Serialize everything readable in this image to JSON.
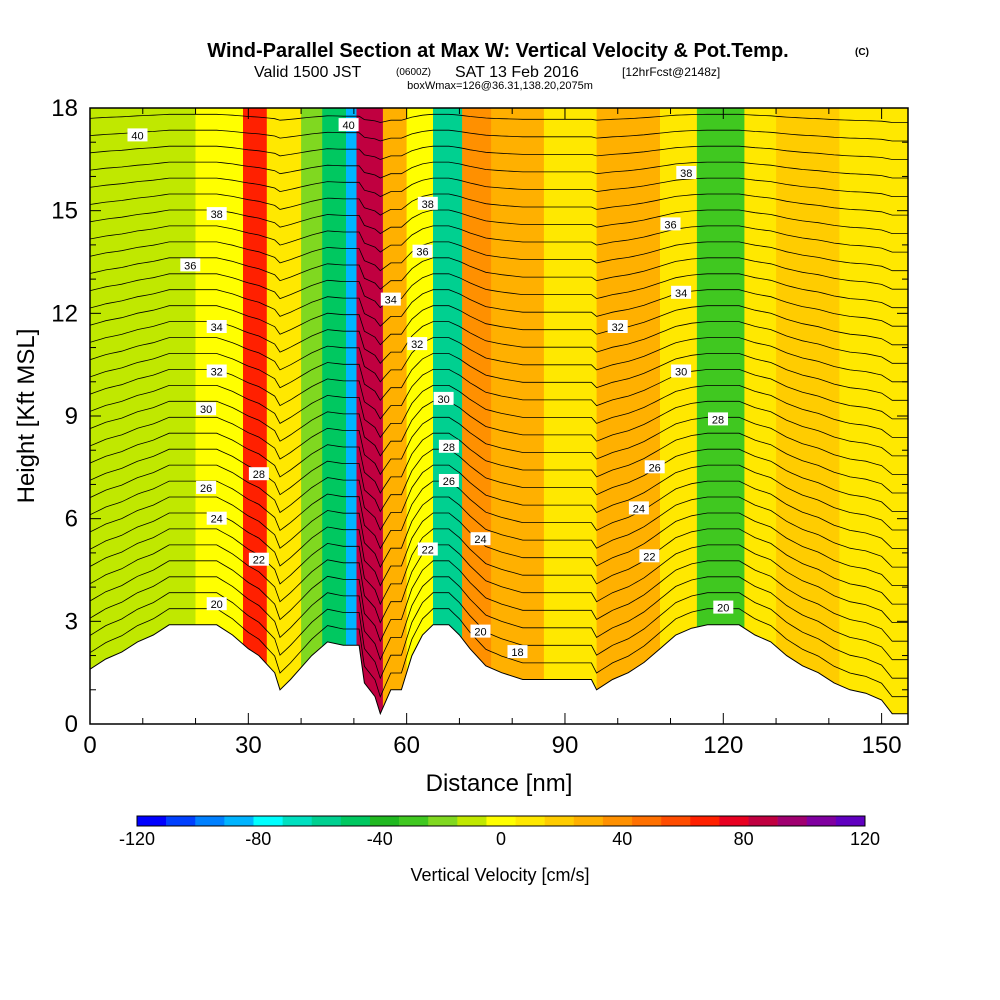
{
  "title": {
    "main": "Wind-Parallel Section at Max W: Vertical Velocity & Pot.Temp.",
    "copyright": "(C)",
    "valid_prefix": "Valid 1500 JST",
    "valid_z": "(0600Z)",
    "valid_date": "SAT 13 Feb 2016",
    "valid_fcst": "[12hrFcst@2148z]",
    "boxwmax": "boxWmax=126@36.31,138.20,2075m"
  },
  "chart_data": {
    "type": "heatmap",
    "xlabel": "Distance [nm]",
    "ylabel": "Height [Kft MSL]",
    "xlim": [
      0,
      155
    ],
    "ylim": [
      0,
      18
    ],
    "xticks": [
      "0",
      "30",
      "60",
      "90",
      "120",
      "150"
    ],
    "yticks": [
      "0",
      "3",
      "6",
      "9",
      "12",
      "15",
      "18"
    ],
    "shading_bands": [
      {
        "x0": 0,
        "x1": 20,
        "w": -5
      },
      {
        "x0": 20,
        "x1": 29,
        "w": 0
      },
      {
        "x0": 29,
        "x1": 33.5,
        "w": 70
      },
      {
        "x0": 33.5,
        "x1": 40,
        "w": 10
      },
      {
        "x0": 40,
        "x1": 44,
        "w": -20
      },
      {
        "x0": 44,
        "x1": 48.5,
        "w": -45
      },
      {
        "x0": 48.5,
        "x1": 50.5,
        "w": -90
      },
      {
        "x0": 50.5,
        "x1": 55.5,
        "w": 90
      },
      {
        "x0": 55.5,
        "x1": 60,
        "w": 25
      },
      {
        "x0": 60,
        "x1": 65,
        "w": 0
      },
      {
        "x0": 65,
        "x1": 70.5,
        "w": -55
      },
      {
        "x0": 70.5,
        "x1": 76,
        "w": 40
      },
      {
        "x0": 76,
        "x1": 86,
        "w": 25
      },
      {
        "x0": 86,
        "x1": 96,
        "w": 10
      },
      {
        "x0": 96,
        "x1": 108,
        "w": 25
      },
      {
        "x0": 108,
        "x1": 115,
        "w": 10
      },
      {
        "x0": 115,
        "x1": 124,
        "w": -25
      },
      {
        "x0": 124,
        "x1": 130,
        "w": 5
      },
      {
        "x0": 130,
        "x1": 142,
        "w": 15
      },
      {
        "x0": 142,
        "x1": 155,
        "w": 5
      }
    ],
    "terrain_kft": [
      {
        "x": 0,
        "h": 1.6
      },
      {
        "x": 3,
        "h": 1.9
      },
      {
        "x": 6,
        "h": 2.1
      },
      {
        "x": 9,
        "h": 2.4
      },
      {
        "x": 12,
        "h": 2.6
      },
      {
        "x": 15,
        "h": 2.9
      },
      {
        "x": 24,
        "h": 2.9
      },
      {
        "x": 27,
        "h": 2.6
      },
      {
        "x": 30,
        "h": 2.2
      },
      {
        "x": 32,
        "h": 2.0
      },
      {
        "x": 35,
        "h": 1.5
      },
      {
        "x": 36,
        "h": 1.0
      },
      {
        "x": 38,
        "h": 1.3
      },
      {
        "x": 42,
        "h": 2.0
      },
      {
        "x": 45,
        "h": 2.4
      },
      {
        "x": 48,
        "h": 2.3
      },
      {
        "x": 51,
        "h": 2.3
      },
      {
        "x": 52,
        "h": 1.2
      },
      {
        "x": 54,
        "h": 0.8
      },
      {
        "x": 55,
        "h": 0.3
      },
      {
        "x": 57,
        "h": 1.0
      },
      {
        "x": 59,
        "h": 1.0
      },
      {
        "x": 61,
        "h": 2.0
      },
      {
        "x": 63,
        "h": 2.6
      },
      {
        "x": 65,
        "h": 2.9
      },
      {
        "x": 68,
        "h": 2.9
      },
      {
        "x": 70,
        "h": 2.6
      },
      {
        "x": 72,
        "h": 2.2
      },
      {
        "x": 75,
        "h": 1.7
      },
      {
        "x": 78,
        "h": 1.5
      },
      {
        "x": 82,
        "h": 1.3
      },
      {
        "x": 95,
        "h": 1.3
      },
      {
        "x": 96,
        "h": 1.0
      },
      {
        "x": 99,
        "h": 1.3
      },
      {
        "x": 102,
        "h": 1.5
      },
      {
        "x": 105,
        "h": 1.8
      },
      {
        "x": 108,
        "h": 2.2
      },
      {
        "x": 111,
        "h": 2.6
      },
      {
        "x": 114,
        "h": 2.8
      },
      {
        "x": 117,
        "h": 2.9
      },
      {
        "x": 123,
        "h": 2.9
      },
      {
        "x": 126,
        "h": 2.6
      },
      {
        "x": 129,
        "h": 2.4
      },
      {
        "x": 132,
        "h": 2.0
      },
      {
        "x": 135,
        "h": 1.7
      },
      {
        "x": 138,
        "h": 1.5
      },
      {
        "x": 141,
        "h": 1.2
      },
      {
        "x": 144,
        "h": 1.0
      },
      {
        "x": 147,
        "h": 0.9
      },
      {
        "x": 150,
        "h": 0.7
      },
      {
        "x": 152,
        "h": 0.3
      },
      {
        "x": 155,
        "h": 0.3
      }
    ],
    "isentrope_spacing_kft": 0.55,
    "isentrope_labels": [
      {
        "text": "40",
        "x": 9,
        "y": 17.2
      },
      {
        "text": "40",
        "x": 49,
        "y": 17.5
      },
      {
        "text": "38",
        "x": 24,
        "y": 14.9
      },
      {
        "text": "38",
        "x": 64,
        "y": 15.2
      },
      {
        "text": "38",
        "x": 113,
        "y": 16.1
      },
      {
        "text": "36",
        "x": 19,
        "y": 13.4
      },
      {
        "text": "36",
        "x": 63,
        "y": 13.8
      },
      {
        "text": "36",
        "x": 110,
        "y": 14.6
      },
      {
        "text": "34",
        "x": 24,
        "y": 11.6
      },
      {
        "text": "34",
        "x": 57,
        "y": 12.4
      },
      {
        "text": "34",
        "x": 112,
        "y": 12.6
      },
      {
        "text": "32",
        "x": 24,
        "y": 10.3
      },
      {
        "text": "32",
        "x": 62,
        "y": 11.1
      },
      {
        "text": "32",
        "x": 100,
        "y": 11.6
      },
      {
        "text": "30",
        "x": 22,
        "y": 9.2
      },
      {
        "text": "30",
        "x": 67,
        "y": 9.5
      },
      {
        "text": "30",
        "x": 112,
        "y": 10.3
      },
      {
        "text": "28",
        "x": 32,
        "y": 7.3
      },
      {
        "text": "28",
        "x": 68,
        "y": 8.1
      },
      {
        "text": "28",
        "x": 119,
        "y": 8.9
      },
      {
        "text": "26",
        "x": 22,
        "y": 6.9
      },
      {
        "text": "26",
        "x": 68,
        "y": 7.1
      },
      {
        "text": "26",
        "x": 107,
        "y": 7.5
      },
      {
        "text": "24",
        "x": 24,
        "y": 6.0
      },
      {
        "text": "24",
        "x": 74,
        "y": 5.4
      },
      {
        "text": "24",
        "x": 104,
        "y": 6.3
      },
      {
        "text": "22",
        "x": 32,
        "y": 4.8
      },
      {
        "text": "22",
        "x": 64,
        "y": 5.1
      },
      {
        "text": "22",
        "x": 106,
        "y": 4.9
      },
      {
        "text": "20",
        "x": 24,
        "y": 3.5
      },
      {
        "text": "20",
        "x": 74,
        "y": 2.7
      },
      {
        "text": "20",
        "x": 120,
        "y": 3.4
      },
      {
        "text": "18",
        "x": 81,
        "y": 2.1
      }
    ]
  },
  "colorbar": {
    "label": "Vertical Velocity [cm/s]",
    "range": [
      -120,
      120
    ],
    "tick_labels": [
      "-120",
      "-80",
      "-40",
      "0",
      "40",
      "80",
      "120"
    ],
    "colors": [
      "#0000ff",
      "#0040ff",
      "#0080ff",
      "#00b4ff",
      "#00ffff",
      "#00e0c0",
      "#00d090",
      "#00c860",
      "#20b820",
      "#40c820",
      "#80d820",
      "#c0e800",
      "#ffff00",
      "#ffe800",
      "#ffcc00",
      "#ffb000",
      "#ff9000",
      "#ff7000",
      "#ff4c00",
      "#ff2000",
      "#e80020",
      "#c00040",
      "#a00070",
      "#8000a0",
      "#6000c0"
    ]
  }
}
